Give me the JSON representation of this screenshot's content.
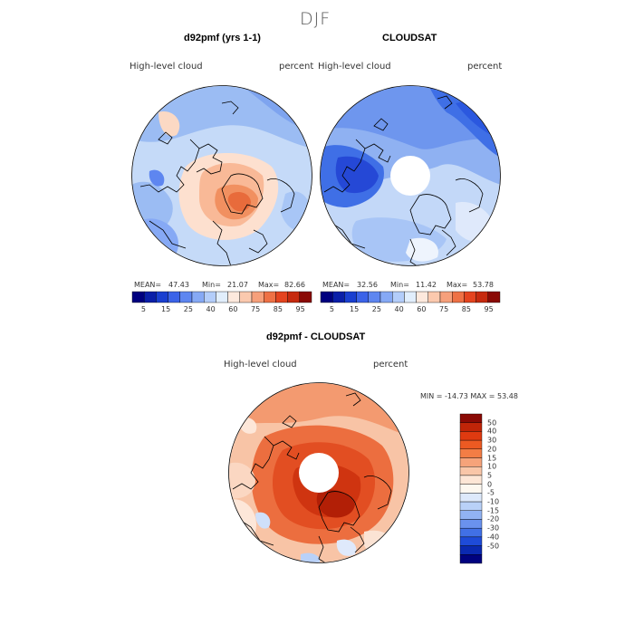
{
  "figure_title": "DJF",
  "panels": {
    "model": {
      "title": "d92pmf (yrs 1-1)",
      "left_label": "High-level cloud",
      "right_label": "percent",
      "stats": {
        "mean_label": "MEAN=",
        "mean": "47.43",
        "min_label": "Min=",
        "min": "21.07",
        "max_label": "Max=",
        "max": "82.66"
      }
    },
    "obs": {
      "title": "CLOUDSAT",
      "left_label": "High-level cloud",
      "right_label": "percent",
      "stats": {
        "mean_label": "MEAN=",
        "mean": "32.56",
        "min_label": "Min=",
        "min": "11.42",
        "max_label": "Max=",
        "max": "53.78"
      }
    },
    "diff": {
      "title": "d92pmf - CLOUDSAT",
      "left_label": "High-level cloud",
      "right_label": "percent",
      "minmax": "MIN = -14.73 MAX =  53.48"
    }
  },
  "colorbar_abs": {
    "colors": [
      "#00007f",
      "#0a1fa8",
      "#1a3fd0",
      "#3b63e8",
      "#5e86f0",
      "#86a9f5",
      "#b3cdfa",
      "#e1eefc",
      "#fde9dd",
      "#fbc9ae",
      "#f6a07b",
      "#ee7145",
      "#e4441f",
      "#c62a0e",
      "#8a0a05"
    ],
    "tick_labels": [
      "5",
      "15",
      "25",
      "40",
      "60",
      "75",
      "85",
      "95"
    ]
  },
  "colorbar_diff": {
    "colors": [
      "#8a0a05",
      "#c02508",
      "#df3a10",
      "#ec5a22",
      "#f37d45",
      "#f6a37a",
      "#f9c6a8",
      "#fde6d6",
      "#fdf8f0",
      "#dde9fb",
      "#b9d1f8",
      "#91b3f3",
      "#6a92ee",
      "#4170e6",
      "#1e4bd8",
      "#0a29b0",
      "#00027f"
    ],
    "tick_labels": [
      "50",
      "40",
      "30",
      "20",
      "15",
      "10",
      "5",
      "0",
      "-5",
      "-10",
      "-15",
      "-20",
      "-30",
      "-40",
      "-50"
    ]
  }
}
